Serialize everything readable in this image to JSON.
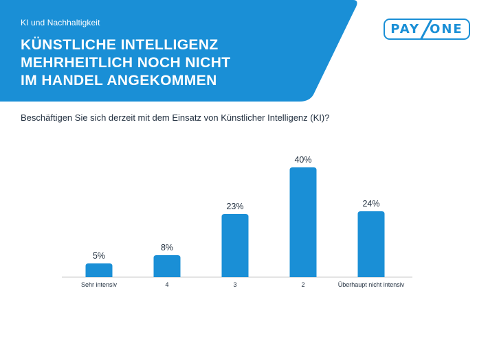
{
  "header": {
    "category": "KI und Nachhaltigkeit",
    "headline": [
      "KÜNSTLICHE INTELLIGENZ",
      "MEHRHEITLICH NOCH NICHT",
      "IM HANDEL ANGEKOMMEN"
    ],
    "brand_color": "#1a8fd6"
  },
  "logo": {
    "left": "PAY",
    "right": "ONE"
  },
  "question": "Beschäftigen Sie sich derzeit mit dem Einsatz von Künstlicher Intelligenz (KI)?",
  "chart_data": {
    "type": "bar",
    "categories": [
      "Sehr intensiv",
      "4",
      "3",
      "2",
      "Überhaupt nicht intensiv"
    ],
    "values": [
      5,
      8,
      23,
      40,
      24
    ],
    "value_labels": [
      "5%",
      "8%",
      "23%",
      "40%",
      "24%"
    ],
    "unit": "%",
    "ylim": [
      0,
      40
    ],
    "grid": false,
    "legend": "none",
    "bar_color": "#1a8fd6"
  }
}
